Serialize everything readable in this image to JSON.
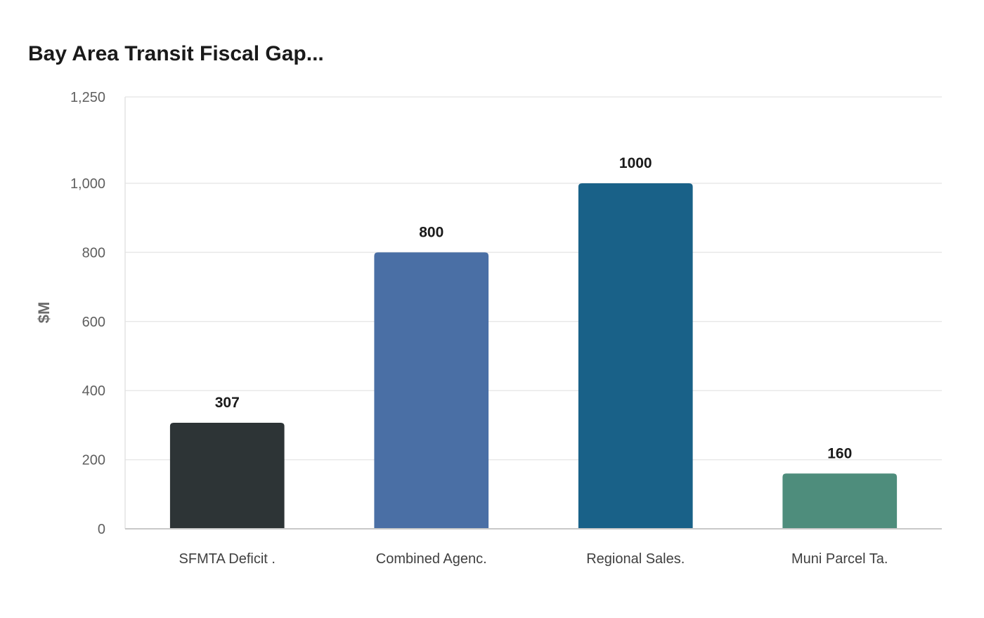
{
  "chart_data": {
    "type": "bar",
    "title": "Bay Area Transit Fiscal Gap...",
    "xlabel": "",
    "ylabel": "$M",
    "ylim": [
      0,
      1250
    ],
    "yticks": [
      0,
      200,
      400,
      600,
      800,
      1000,
      1250
    ],
    "ytick_labels": [
      "0",
      "200",
      "400",
      "600",
      "800",
      "1,000",
      "1,250"
    ],
    "grid": true,
    "categories": [
      "SFMTA Deficit .",
      "Combined Agenc.",
      "Regional Sales.",
      "Muni Parcel Ta."
    ],
    "values": [
      307,
      800,
      1000,
      160
    ],
    "value_labels": [
      "307",
      "800",
      "1000",
      "160"
    ],
    "colors": [
      "#2d3436",
      "#4a6fa5",
      "#196188",
      "#4e8d7c"
    ]
  }
}
